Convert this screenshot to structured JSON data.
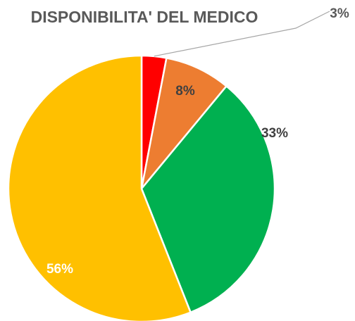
{
  "chart_data": {
    "type": "pie",
    "title": "DISPONIBILITA' DEL MEDICO",
    "categories": [
      null,
      null,
      null,
      null
    ],
    "values": [
      3,
      8,
      33,
      56
    ],
    "value_labels": [
      "3%",
      "8%",
      "33%",
      "56%"
    ],
    "colors": [
      "#ff0000",
      "#ed7d31",
      "#00b050",
      "#ffc000"
    ],
    "value_label_colors": [
      "#595959",
      "#404040",
      "#404040",
      "#ffffff"
    ]
  }
}
